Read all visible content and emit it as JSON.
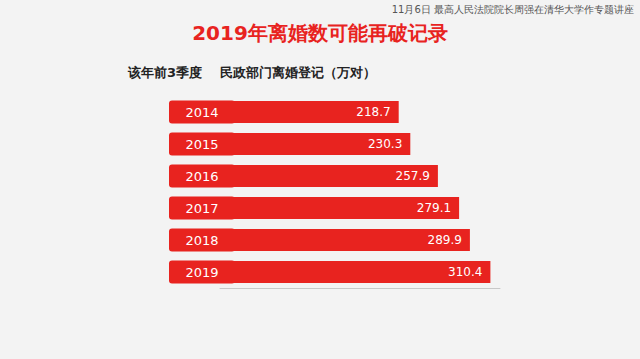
{
  "chart_data": {
    "type": "bar",
    "orientation": "horizontal",
    "title": "2019年离婚数可能再破记录",
    "y_label": "该年前3季度",
    "x_label": "民政部门离婚登记（万对）",
    "annotations": [
      "11月6日 最高人民法院院长周强在清华大学作专题讲座"
    ],
    "categories": [
      "2014",
      "2015",
      "2016",
      "2017",
      "2018",
      "2019"
    ],
    "values": [
      218.7,
      230.3,
      257.9,
      279.1,
      289.9,
      310.4
    ],
    "color": "#e8231f",
    "xlim": [
      40,
      320
    ],
    "data_labels": true,
    "tick_labels": "y",
    "grid": false
  }
}
